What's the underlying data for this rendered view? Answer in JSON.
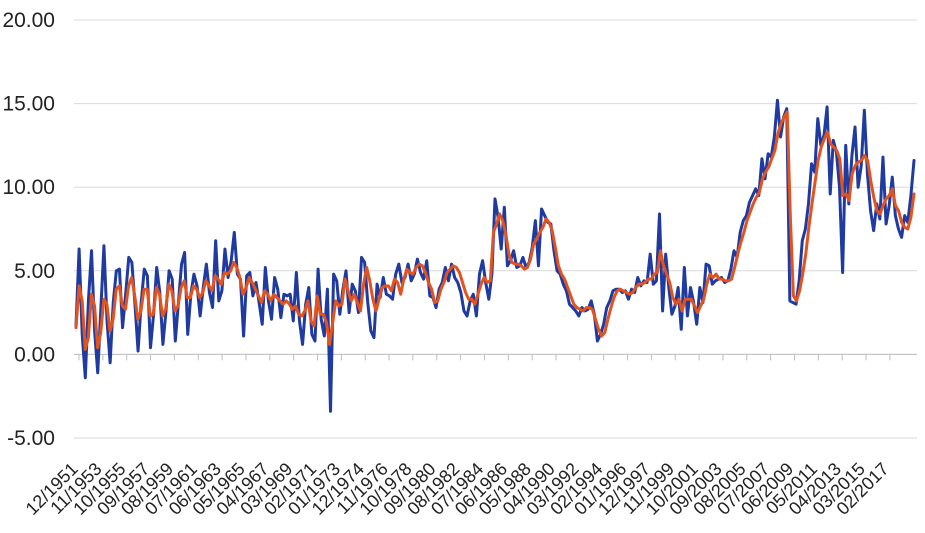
{
  "chart_data": {
    "type": "line",
    "title": "",
    "xlabel": "",
    "ylabel": "",
    "ylim": [
      -5,
      20
    ],
    "y_ticks": [
      "20.00",
      "15.00",
      "10.00",
      "5.00",
      "0.00",
      "-5.00"
    ],
    "x_tick_labels": [
      "12/1951",
      "11/1953",
      "10/1955",
      "09/1957",
      "08/1959",
      "07/1961",
      "06/1963",
      "05/1965",
      "04/1967",
      "03/1969",
      "02/1971",
      "01/1973",
      "12/1974",
      "11/1976",
      "10/1978",
      "09/1980",
      "08/1982",
      "07/1984",
      "06/1986",
      "05/1988",
      "04/1990",
      "03/1992",
      "02/1994",
      "01/1996",
      "12/1997",
      "11/1999",
      "10/2001",
      "09/2003",
      "08/2005",
      "07/2007",
      "06/2009",
      "05/2011",
      "04/2013",
      "03/2015",
      "02/2017"
    ],
    "grid": "horizontal",
    "legend": "none",
    "colors": {
      "series_1": "#1f3aa0",
      "series_2": "#e2531f",
      "grid": "#d9d9d9",
      "axis": "#bfbfbf"
    },
    "series": [
      {
        "values": [
          1.7,
          6.3,
          1.2,
          -1.4,
          3.2,
          6.2,
          1.4,
          -1.1,
          2.7,
          6.5,
          2.0,
          -0.5,
          3.1,
          5.0,
          5.1,
          1.6,
          3.6,
          5.8,
          5.5,
          3.0,
          0.2,
          3.1,
          5.1,
          4.7,
          0.4,
          2.4,
          5.2,
          3.7,
          0.6,
          2.6,
          5.0,
          4.5,
          0.8,
          3.1,
          5.4,
          6.1,
          1.2,
          3.6,
          4.8,
          4.1,
          2.3,
          4.0,
          5.4,
          3.7,
          2.8,
          6.8,
          3.2,
          3.8,
          6.3,
          4.6,
          5.6,
          7.3,
          4.8,
          4.5,
          1.1,
          4.7,
          4.9,
          3.5,
          4.3,
          3.1,
          1.8,
          5.2,
          3.2,
          2.1,
          4.6,
          3.9,
          2.2,
          3.6,
          3.5,
          3.6,
          2.0,
          4.9,
          2.0,
          0.6,
          3.0,
          4.0,
          1.2,
          0.8,
          5.1,
          2.1,
          1.1,
          3.9,
          -3.4,
          4.8,
          4.4,
          2.4,
          3.9,
          5.0,
          2.5,
          4.2,
          3.8,
          2.5,
          5.8,
          5.5,
          3.1,
          1.4,
          1.0,
          4.2,
          3.4,
          4.6,
          3.6,
          3.5,
          3.3,
          4.8,
          5.4,
          4.3,
          4.6,
          5.4,
          4.4,
          4.8,
          5.7,
          4.9,
          4.5,
          5.6,
          3.5,
          3.4,
          2.8,
          3.9,
          4.3,
          5.2,
          4.4,
          5.4,
          4.6,
          4.3,
          3.7,
          2.6,
          2.3,
          3.2,
          3.6,
          2.3,
          4.8,
          5.6,
          4.3,
          3.3,
          4.8,
          9.3,
          8.2,
          6.3,
          8.8,
          5.3,
          5.6,
          6.2,
          5.2,
          5.3,
          5.8,
          5.2,
          5.5,
          6.4,
          8.0,
          5.3,
          8.7,
          8.3,
          7.9,
          7.8,
          6.2,
          5.0,
          4.8,
          4.2,
          3.8,
          3.0,
          2.8,
          2.6,
          2.3,
          2.8,
          2.6,
          2.7,
          3.2,
          2.4,
          0.8,
          1.2,
          1.8,
          2.8,
          3.2,
          3.8,
          3.9,
          3.9,
          3.7,
          3.8,
          3.3,
          3.9,
          3.7,
          4.6,
          4.1,
          4.4,
          4.3,
          6.0,
          4.2,
          4.4,
          8.4,
          2.6,
          6.0,
          4.0,
          2.4,
          2.9,
          4.0,
          1.5,
          5.2,
          2.3,
          4.0,
          3.1,
          1.8,
          4.0,
          3.1,
          5.4,
          5.3,
          4.2,
          4.4,
          4.5,
          4.6,
          4.3,
          4.4,
          5.1,
          6.2,
          5.8,
          7.3,
          8.0,
          8.3,
          9.1,
          9.5,
          9.9,
          9.5,
          11.7,
          10.5,
          12.0,
          11.8,
          13.0,
          15.2,
          13.0,
          14.2,
          14.7,
          3.2,
          3.1,
          3.0,
          4.4,
          6.8,
          7.5,
          9.0,
          11.4,
          10.9,
          14.1,
          12.5,
          13.1,
          14.8,
          9.6,
          12.8,
          12.1,
          10.0,
          4.9,
          12.5,
          9.0,
          11.9,
          13.6,
          10.0,
          11.3,
          14.6,
          10.8,
          8.6,
          7.4,
          9.0,
          8.1,
          11.8,
          7.8,
          8.9,
          10.6,
          8.3,
          7.5,
          7.0,
          8.3,
          7.9,
          9.5,
          11.6
        ]
      },
      {
        "values": [
          1.6,
          4.1,
          3.2,
          0.3,
          1.0,
          3.6,
          2.9,
          0.4,
          1.3,
          3.3,
          3.0,
          1.4,
          2.1,
          3.9,
          4.1,
          2.9,
          2.7,
          4.1,
          4.6,
          3.5,
          2.1,
          2.6,
          3.9,
          3.9,
          2.3,
          2.4,
          4.0,
          3.6,
          2.3,
          2.7,
          4.2,
          3.8,
          2.6,
          2.9,
          4.0,
          4.4,
          3.4,
          3.4,
          4.1,
          3.9,
          3.4,
          3.7,
          4.4,
          4.1,
          3.8,
          4.7,
          4.5,
          4.2,
          4.9,
          4.8,
          5.0,
          5.5,
          5.2,
          4.6,
          3.6,
          4.0,
          4.6,
          4.3,
          3.9,
          3.5,
          3.1,
          3.8,
          3.6,
          3.2,
          3.6,
          3.4,
          3.2,
          3.0,
          3.2,
          3.0,
          2.7,
          2.9,
          2.4,
          2.3,
          2.6,
          3.2,
          2.0,
          1.7,
          3.5,
          2.4,
          2.4,
          1.9,
          0.6,
          1.9,
          3.2,
          2.9,
          3.0,
          4.5,
          3.8,
          3.2,
          3.6,
          3.1,
          2.6,
          4.2,
          5.2,
          4.4,
          3.3,
          2.6,
          3.3,
          4.0,
          4.1,
          4.1,
          3.8,
          4.5,
          4.3,
          3.6,
          4.5,
          5.1,
          4.9,
          4.8,
          5.2,
          5.4,
          5.3,
          4.9,
          4.3,
          3.9,
          3.1,
          3.2,
          3.9,
          4.3,
          4.9,
          5.1,
          5.3,
          5.2,
          4.9,
          4.3,
          3.7,
          3.3,
          3.3,
          3.0,
          3.6,
          4.2,
          4.6,
          4.3,
          4.4,
          7.3,
          7.8,
          8.4,
          8.0,
          7.2,
          6.0,
          5.5,
          5.4,
          5.4,
          5.3,
          5.1,
          5.2,
          5.7,
          6.6,
          6.9,
          7.3,
          7.6,
          8.1,
          7.9,
          7.4,
          6.4,
          5.3,
          4.8,
          4.5,
          4.0,
          3.5,
          3.0,
          2.8,
          2.7,
          2.6,
          2.8,
          2.8,
          2.7,
          2.1,
          1.5,
          1.1,
          1.3,
          2.1,
          2.8,
          3.4,
          3.8,
          3.9,
          3.8,
          3.7,
          3.6,
          3.7,
          4.0,
          4.2,
          4.2,
          4.3,
          4.5,
          4.5,
          4.8,
          4.9,
          6.2,
          5.3,
          4.8,
          4.3,
          3.4,
          3.0,
          3.3,
          2.6,
          3.3,
          3.3,
          3.3,
          2.9,
          2.5,
          2.9,
          3.3,
          4.2,
          4.8,
          4.6,
          4.8,
          4.5,
          4.5,
          4.4,
          4.4,
          4.5,
          5.2,
          6.0,
          6.7,
          7.3,
          8.0,
          8.5,
          9.0,
          9.4,
          9.7,
          10.5,
          10.9,
          11.2,
          11.7,
          12.2,
          13.2,
          13.8,
          14.2,
          14.5,
          8.3,
          3.5,
          3.2,
          3.8,
          4.8,
          6.0,
          7.6,
          9.0,
          10.3,
          11.6,
          12.4,
          12.9,
          13.3,
          12.6,
          12.4,
          12.2,
          11.7,
          9.5,
          9.6,
          9.2,
          10.8,
          11.3,
          11.5,
          11.6,
          11.9,
          11.6,
          10.4,
          9.4,
          8.6,
          8.4,
          8.9,
          9.3,
          9.5,
          9.9,
          8.9,
          8.6,
          7.9,
          7.6,
          7.5,
          8.2,
          9.6
        ]
      }
    ]
  }
}
